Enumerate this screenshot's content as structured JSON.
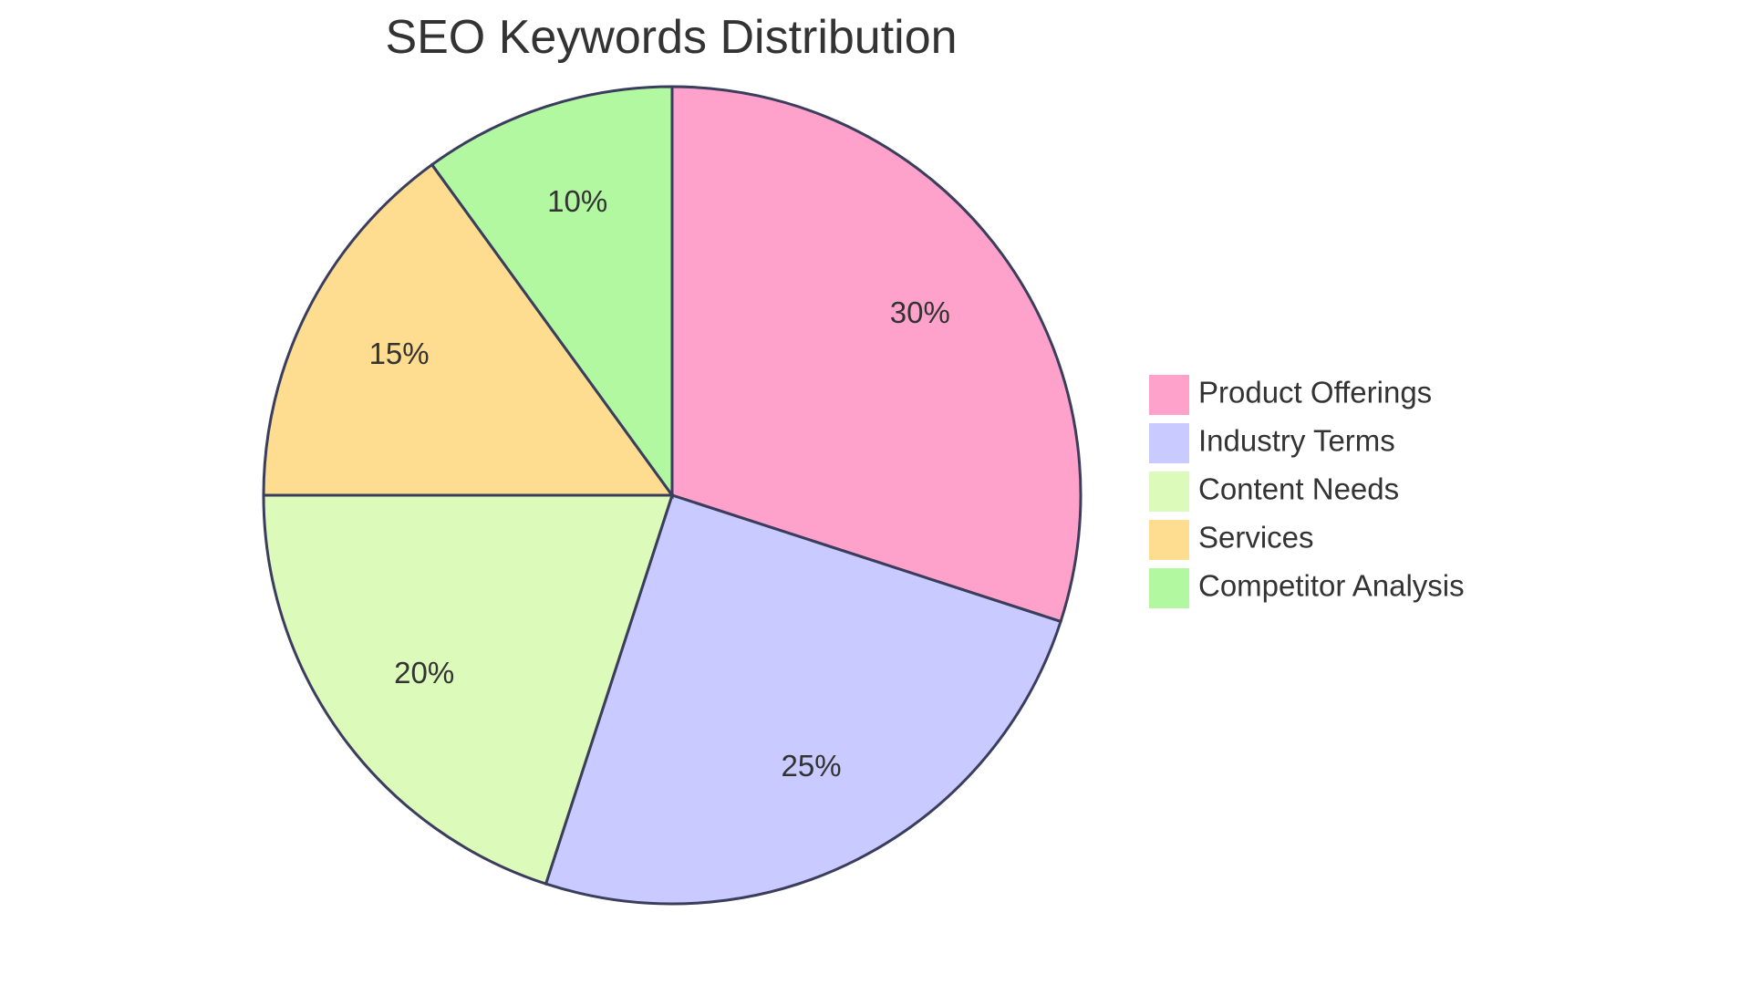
{
  "chart_data": {
    "type": "pie",
    "title": "SEO Keywords Distribution",
    "legend_position": "right",
    "slices": [
      {
        "label": "Product Offerings",
        "value": 30,
        "display": "30%",
        "color": "#ffa2cb"
      },
      {
        "label": "Industry Terms",
        "value": 25,
        "display": "25%",
        "color": "#c9caff"
      },
      {
        "label": "Content Needs",
        "value": 20,
        "display": "20%",
        "color": "#dcfab9"
      },
      {
        "label": "Services",
        "value": 15,
        "display": "15%",
        "color": "#fedd91"
      },
      {
        "label": "Competitor Analysis",
        "value": 10,
        "display": "10%",
        "color": "#b2f8a1"
      }
    ]
  }
}
